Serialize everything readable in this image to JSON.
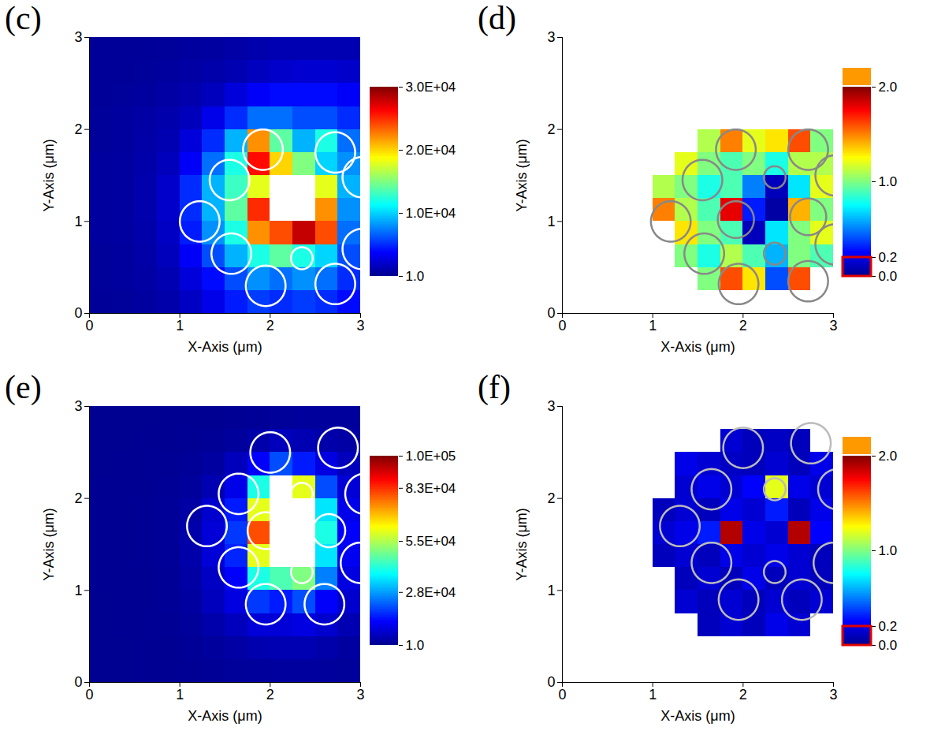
{
  "chart_data": [
    {
      "type": "heatmap",
      "title": "(c)",
      "x_label": "X-Axis (μm)",
      "y_label": "Y-Axis (μm)",
      "xlim": [
        0,
        3
      ],
      "ylim": [
        0,
        3
      ],
      "xticks": [
        0,
        1,
        2,
        3
      ],
      "yticks": [
        0,
        1,
        2,
        3
      ],
      "x_edges": [
        0,
        0.25,
        0.5,
        0.75,
        1,
        1.25,
        1.5,
        1.75,
        2,
        2.25,
        2.5,
        2.75,
        3
      ],
      "y_edges": [
        3,
        2.75,
        2.5,
        2.25,
        2,
        1.75,
        1.5,
        1.25,
        1,
        0.75,
        0.5,
        0.25,
        0
      ],
      "values": [
        [
          300,
          300,
          300,
          400,
          500,
          600,
          800,
          1000,
          1200,
          1200,
          1200,
          1200
        ],
        [
          300,
          300,
          400,
          500,
          700,
          900,
          1200,
          1600,
          2000,
          2200,
          2200,
          2000
        ],
        [
          300,
          400,
          500,
          700,
          1000,
          1500,
          2500,
          3500,
          4000,
          4000,
          4000,
          3500
        ],
        [
          400,
          500,
          700,
          1000,
          1500,
          3000,
          5000,
          7000,
          7000,
          6000,
          6000,
          5000
        ],
        [
          400,
          500,
          800,
          1200,
          2500,
          5000,
          9000,
          22000,
          14000,
          9000,
          12000,
          7000
        ],
        [
          500,
          600,
          900,
          1500,
          3500,
          7000,
          12000,
          26000,
          20000,
          15000,
          10000,
          8000
        ],
        [
          500,
          600,
          1000,
          2000,
          5000,
          9000,
          13000,
          18000,
          40000,
          40000,
          18000,
          9000
        ],
        [
          500,
          600,
          1000,
          2000,
          5000,
          9000,
          14000,
          25000,
          40000,
          40000,
          22000,
          8000
        ],
        [
          500,
          600,
          900,
          1800,
          4500,
          8000,
          12000,
          22000,
          24000,
          28000,
          24000,
          7000
        ],
        [
          400,
          500,
          800,
          1500,
          3500,
          6000,
          9000,
          12000,
          14000,
          12000,
          10000,
          6000
        ],
        [
          400,
          500,
          700,
          1200,
          2500,
          4000,
          6000,
          8000,
          7000,
          8000,
          7000,
          5000
        ],
        [
          300,
          400,
          600,
          900,
          1800,
          3000,
          4500,
          5500,
          5000,
          5500,
          5000,
          4000
        ]
      ],
      "colorbar": {
        "range": [
          1,
          30000
        ],
        "color": "#ffffff",
        "ticks": [
          {
            "value": 1,
            "label": "1.0"
          },
          {
            "value": 10000,
            "label": "1.0E+04"
          },
          {
            "value": 20000,
            "label": "2.0E+04"
          },
          {
            "value": 30000,
            "label": "3.0E+04"
          }
        ]
      },
      "circles": {
        "color": "#ffffff",
        "x": [
          1.92,
          2.72,
          1.55,
          3.02,
          1.22,
          1.57,
          2.35,
          1.95,
          2.72,
          3.02
        ],
        "y": [
          1.78,
          1.75,
          1.45,
          1.48,
          1.0,
          0.65,
          0.6,
          0.3,
          0.32,
          0.7
        ],
        "r": [
          0.22,
          0.22,
          0.22,
          0.22,
          0.22,
          0.22,
          0.12,
          0.22,
          0.22,
          0.22
        ]
      }
    },
    {
      "type": "heatmap",
      "title": "(d)",
      "x_label": "X-Axis (μm)",
      "y_label": "Y-Axis (μm)",
      "xlim": [
        0,
        3
      ],
      "ylim": [
        0,
        3
      ],
      "xticks": [
        0,
        1,
        2,
        3
      ],
      "yticks": [
        0,
        1,
        2,
        3
      ],
      "x_edges": [
        0,
        0.25,
        0.5,
        0.75,
        1,
        1.25,
        1.5,
        1.75,
        2,
        2.25,
        2.5,
        2.75,
        3
      ],
      "y_edges": [
        3,
        2.75,
        2.5,
        2.25,
        2,
        1.75,
        1.5,
        1.25,
        1,
        0.75,
        0.5,
        0.25,
        0
      ],
      "values": [
        [
          null,
          null,
          null,
          null,
          null,
          null,
          null,
          null,
          null,
          null,
          null,
          null
        ],
        [
          null,
          null,
          null,
          null,
          null,
          null,
          null,
          null,
          null,
          null,
          null,
          null
        ],
        [
          null,
          null,
          null,
          null,
          null,
          null,
          null,
          null,
          null,
          null,
          null,
          null
        ],
        [
          null,
          null,
          null,
          null,
          null,
          null,
          null,
          null,
          null,
          null,
          null,
          null
        ],
        [
          null,
          null,
          null,
          null,
          null,
          null,
          1.1,
          1.5,
          1.2,
          1.3,
          1.6,
          1.0
        ],
        [
          null,
          null,
          null,
          null,
          null,
          1.2,
          1.0,
          0.9,
          1.0,
          0.8,
          1.1,
          1.1
        ],
        [
          null,
          null,
          null,
          null,
          1.1,
          1.0,
          0.8,
          0.9,
          0.5,
          0.1,
          0.7,
          1.2
        ],
        [
          null,
          null,
          null,
          null,
          1.5,
          1.1,
          0.9,
          1.8,
          0.3,
          0.05,
          1.4,
          1.0
        ],
        [
          null,
          null,
          null,
          null,
          null,
          1.3,
          1.0,
          0.9,
          0.1,
          0.7,
          1.0,
          1.2
        ],
        [
          null,
          null,
          null,
          null,
          null,
          1.0,
          0.8,
          1.1,
          0.9,
          0.6,
          1.0,
          0.9
        ],
        [
          null,
          null,
          null,
          null,
          null,
          null,
          1.0,
          1.6,
          1.3,
          0.4,
          1.6,
          null
        ],
        [
          null,
          null,
          null,
          null,
          null,
          null,
          null,
          null,
          null,
          null,
          null,
          null
        ]
      ],
      "colorbar": {
        "range": [
          0,
          2
        ],
        "color": "#ff9900",
        "highlight": [
          0,
          0.2
        ],
        "ticks": [
          {
            "value": 0,
            "label": "0.0"
          },
          0.2,
          {
            "value": 1,
            "label": "1.0"
          },
          {
            "value": 2,
            "label": "2.0"
          }
        ]
      },
      "circles": {
        "color": "#888888",
        "x": [
          1.92,
          2.72,
          2.35,
          3.02,
          1.55,
          1.2,
          1.92,
          2.72,
          1.57,
          2.35,
          3.02,
          1.95,
          2.72
        ],
        "y": [
          1.78,
          1.78,
          1.48,
          1.5,
          1.45,
          1.0,
          1.02,
          1.05,
          0.65,
          0.65,
          0.75,
          0.32,
          0.35
        ],
        "r": [
          0.22,
          0.22,
          0.12,
          0.22,
          0.22,
          0.22,
          0.2,
          0.2,
          0.22,
          0.12,
          0.22,
          0.22,
          0.22
        ]
      }
    },
    {
      "type": "heatmap",
      "title": "(e)",
      "x_label": "X-Axis (μm)",
      "y_label": "Y-Axis (μm)",
      "xlim": [
        0,
        3
      ],
      "ylim": [
        0,
        3
      ],
      "xticks": [
        0,
        1,
        2,
        3
      ],
      "yticks": [
        0,
        1,
        2,
        3
      ],
      "x_edges": [
        0,
        0.25,
        0.5,
        0.75,
        1,
        1.25,
        1.5,
        1.75,
        2,
        2.25,
        2.5,
        2.75,
        3
      ],
      "y_edges": [
        3,
        2.75,
        2.5,
        2.25,
        2,
        1.75,
        1.5,
        1.25,
        1,
        0.75,
        0.5,
        0.25,
        0
      ],
      "values": [
        [
          200,
          200,
          200,
          300,
          400,
          500,
          700,
          900,
          1200,
          1500,
          1500,
          1500
        ],
        [
          200,
          200,
          300,
          400,
          600,
          900,
          1500,
          3000,
          5000,
          4000,
          3000,
          2500
        ],
        [
          200,
          300,
          400,
          600,
          1000,
          2000,
          5000,
          12000,
          20000,
          15000,
          9000,
          5000
        ],
        [
          300,
          400,
          500,
          800,
          1500,
          4000,
          10000,
          40000,
          110000,
          60000,
          20000,
          8000
        ],
        [
          300,
          400,
          600,
          1000,
          2500,
          7000,
          15000,
          60000,
          110000,
          110000,
          35000,
          10000
        ],
        [
          300,
          400,
          600,
          1000,
          3000,
          8000,
          18000,
          80000,
          110000,
          110000,
          40000,
          12000
        ],
        [
          300,
          400,
          600,
          1000,
          3000,
          8000,
          16000,
          60000,
          110000,
          110000,
          35000,
          11000
        ],
        [
          300,
          400,
          500,
          900,
          2500,
          6000,
          12000,
          40000,
          45000,
          50000,
          25000,
          9000
        ],
        [
          200,
          300,
          500,
          800,
          2000,
          5000,
          9000,
          18000,
          15000,
          20000,
          12000,
          7000
        ],
        [
          200,
          300,
          400,
          600,
          1200,
          3000,
          5000,
          8000,
          8000,
          9000,
          7000,
          4000
        ],
        [
          200,
          200,
          300,
          500,
          800,
          1500,
          2500,
          3500,
          4000,
          4000,
          3000,
          2000
        ],
        [
          200,
          200,
          300,
          400,
          600,
          900,
          1200,
          1500,
          1800,
          1800,
          1500,
          1200
        ]
      ],
      "colorbar": {
        "range": [
          1,
          100000
        ],
        "color": "#ffffff",
        "ticks": [
          {
            "value": 1,
            "label": "1.0"
          },
          {
            "value": 28000,
            "label": "2.8E+04"
          },
          {
            "value": 55000,
            "label": "5.5E+04"
          },
          {
            "value": 83000,
            "label": "8.3E+04"
          },
          {
            "value": 100000,
            "label": "1.0E+05"
          }
        ]
      },
      "circles": {
        "color": "#ffffff",
        "x": [
          2.0,
          2.75,
          1.65,
          2.35,
          3.05,
          1.3,
          1.95,
          2.65,
          1.65,
          2.35,
          3.0,
          1.95,
          2.6
        ],
        "y": [
          2.5,
          2.55,
          2.05,
          2.05,
          2.05,
          1.7,
          1.65,
          1.65,
          1.25,
          1.2,
          1.3,
          0.85,
          0.85
        ],
        "r": [
          0.22,
          0.22,
          0.22,
          0.12,
          0.22,
          0.22,
          0.2,
          0.18,
          0.22,
          0.12,
          0.22,
          0.22,
          0.22
        ]
      }
    },
    {
      "type": "heatmap",
      "title": "(f)",
      "x_label": "X-Axis (μm)",
      "y_label": "Y-Axis (μm)",
      "xlim": [
        0,
        3
      ],
      "ylim": [
        0,
        3
      ],
      "xticks": [
        0,
        1,
        2,
        3
      ],
      "yticks": [
        0,
        1,
        2,
        3
      ],
      "x_edges": [
        0,
        0.25,
        0.5,
        0.75,
        1,
        1.25,
        1.5,
        1.75,
        2,
        2.25,
        2.5,
        2.75,
        3
      ],
      "y_edges": [
        3,
        2.75,
        2.5,
        2.25,
        2,
        1.75,
        1.5,
        1.25,
        1,
        0.75,
        0.5,
        0.25,
        0
      ],
      "values": [
        [
          null,
          null,
          null,
          null,
          null,
          null,
          null,
          null,
          null,
          null,
          null,
          null
        ],
        [
          null,
          null,
          null,
          null,
          null,
          null,
          null,
          0.15,
          0.1,
          0.12,
          0.1,
          null
        ],
        [
          null,
          null,
          null,
          null,
          null,
          0.2,
          0.15,
          0.12,
          0.1,
          0.15,
          0.1,
          0.2
        ],
        [
          null,
          null,
          null,
          null,
          null,
          0.15,
          0.2,
          0.15,
          0.25,
          1.2,
          0.2,
          0.15
        ],
        [
          null,
          null,
          null,
          null,
          0.1,
          0.15,
          0.1,
          0.2,
          0.15,
          0.3,
          0.1,
          0.2
        ],
        [
          null,
          null,
          null,
          null,
          0.15,
          0.2,
          0.3,
          1.9,
          0.2,
          0.15,
          1.9,
          0.25
        ],
        [
          null,
          null,
          null,
          null,
          0.1,
          0.15,
          0.1,
          0.2,
          0.15,
          0.2,
          0.15,
          0.1
        ],
        [
          null,
          null,
          null,
          null,
          null,
          0.1,
          0.15,
          0.1,
          0.2,
          0.1,
          0.15,
          0.1
        ],
        [
          null,
          null,
          null,
          null,
          null,
          0.15,
          0.1,
          0.15,
          0.1,
          0.15,
          0.1,
          0.15
        ],
        [
          null,
          null,
          null,
          null,
          null,
          null,
          0.1,
          0.15,
          0.1,
          0.2,
          0.15,
          null
        ],
        [
          null,
          null,
          null,
          null,
          null,
          null,
          null,
          null,
          null,
          null,
          null,
          null
        ],
        [
          null,
          null,
          null,
          null,
          null,
          null,
          null,
          null,
          null,
          null,
          null,
          null
        ]
      ],
      "colorbar": {
        "range": [
          0,
          2
        ],
        "color": "#ff9900",
        "highlight": [
          0,
          0.2
        ],
        "ticks": [
          {
            "value": 0,
            "label": "0.0"
          },
          0.2,
          {
            "value": 1,
            "label": "1.0"
          },
          {
            "value": 2,
            "label": "2.0"
          }
        ]
      },
      "circles": {
        "color": "#bbbbbb",
        "x": [
          2.0,
          2.75,
          1.65,
          2.35,
          3.05,
          1.3,
          1.65,
          2.35,
          3.0,
          1.95,
          2.65
        ],
        "y": [
          2.55,
          2.6,
          2.1,
          2.1,
          2.1,
          1.7,
          1.3,
          1.2,
          1.3,
          0.9,
          0.9
        ],
        "r": [
          0.22,
          0.22,
          0.22,
          0.12,
          0.22,
          0.22,
          0.22,
          0.12,
          0.22,
          0.22,
          0.22
        ]
      }
    }
  ]
}
